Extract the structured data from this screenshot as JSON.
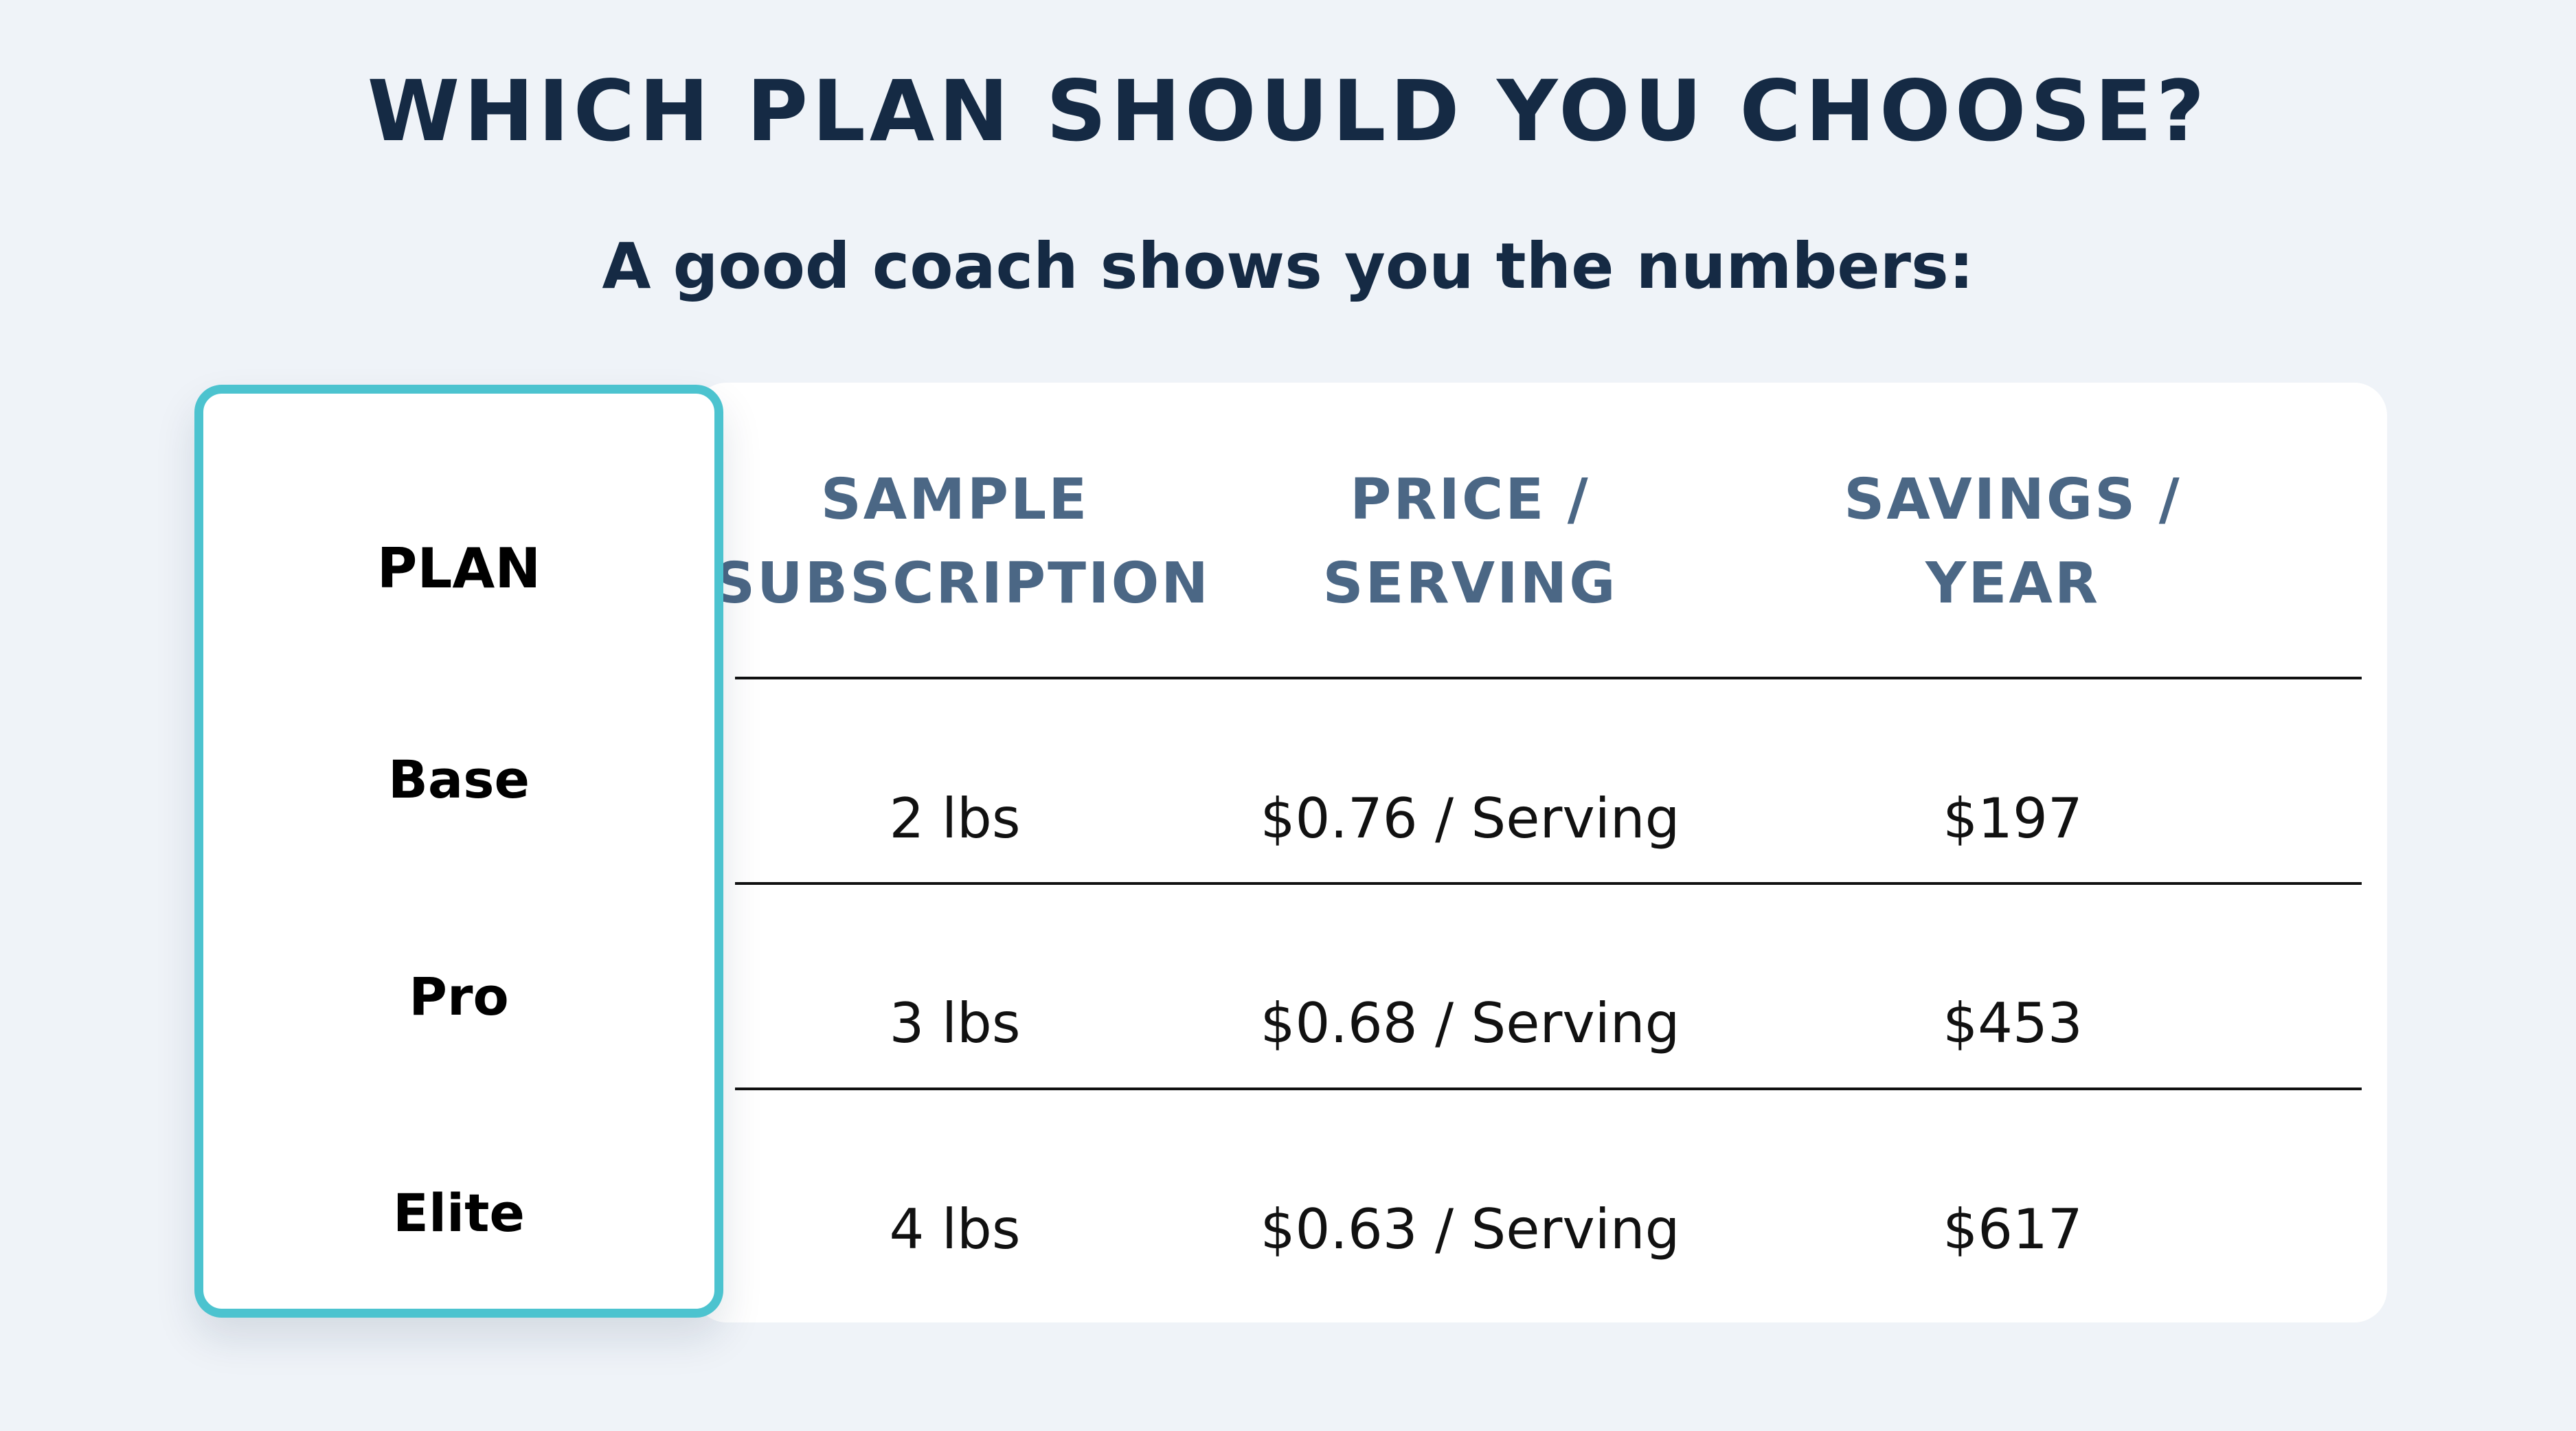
{
  "title": "WHICH PLAN SHOULD YOU CHOOSE?",
  "subtitle": "A good coach shows you the numbers:",
  "colors": {
    "background": "#eff3f8",
    "title": "#152a44",
    "header_text": "#4b6785",
    "accent_border": "#4cc3cf",
    "card": "#ffffff",
    "row_divider": "#111111"
  },
  "table": {
    "plan_header": "PLAN",
    "columns": [
      {
        "line1": "SAMPLE",
        "line2": "SUBSCRIPTION"
      },
      {
        "line1": "PRICE /",
        "line2": "SERVING"
      },
      {
        "line1": "SAVINGS /",
        "line2": "YEAR"
      }
    ],
    "rows": [
      {
        "plan": "Base",
        "subscription": "2 lbs",
        "price": "$0.76 / Serving",
        "savings": "$197"
      },
      {
        "plan": "Pro",
        "subscription": "3 lbs",
        "price": "$0.68 / Serving",
        "savings": "$453"
      },
      {
        "plan": "Elite",
        "subscription": "4 lbs",
        "price": "$0.63 / Serving",
        "savings": "$617"
      }
    ]
  }
}
